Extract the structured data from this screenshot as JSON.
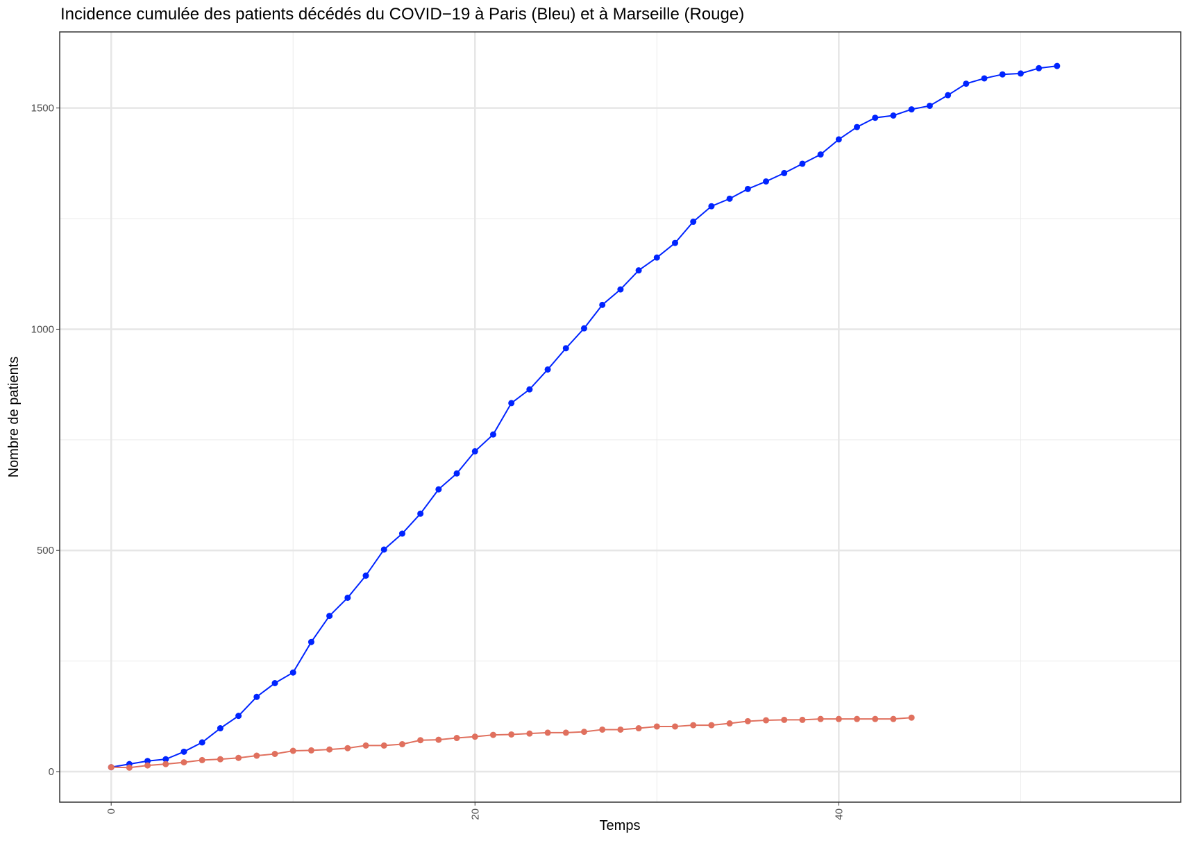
{
  "chart_data": {
    "type": "line",
    "title": "Incidence cumulée des patients décédés du COVID−19 à Paris (Bleu) et à Marseille (Rouge)",
    "x_label": "Temps",
    "y_label": "Nombre de patients",
    "grid": true,
    "xlim": [
      -2.83,
      58.8
    ],
    "ylim": [
      -69,
      1672
    ],
    "xticks": [
      0,
      20,
      40
    ],
    "yticks": [
      0,
      500,
      1000,
      1500
    ],
    "series": [
      {
        "color": "#0024ff",
        "x": [
          0,
          1,
          2,
          3,
          4,
          5,
          6,
          7,
          8,
          9,
          10,
          11,
          12,
          13,
          14,
          15,
          16,
          17,
          18,
          19,
          20,
          21,
          22,
          23,
          24,
          25,
          26,
          27,
          28,
          29,
          30,
          31,
          32,
          33,
          34,
          35,
          36,
          37,
          38,
          39,
          40,
          41,
          42,
          43,
          44,
          45,
          46,
          47,
          48,
          49,
          50,
          51,
          52
        ],
        "values": [
          10,
          17,
          24,
          28,
          45,
          66,
          98,
          126,
          169,
          200,
          224,
          293,
          352,
          393,
          443,
          502,
          538,
          583,
          638,
          674,
          724,
          762,
          833,
          864,
          909,
          957,
          1002,
          1055,
          1090,
          1133,
          1162,
          1195,
          1243,
          1278,
          1295,
          1317,
          1334,
          1353,
          1374,
          1395,
          1429,
          1457,
          1478,
          1483,
          1497,
          1505,
          1529,
          1555,
          1567,
          1576,
          1578,
          1590,
          1595
        ]
      },
      {
        "color": "#e0705e",
        "x": [
          0,
          1,
          2,
          3,
          4,
          5,
          6,
          7,
          8,
          9,
          10,
          11,
          12,
          13,
          14,
          15,
          16,
          17,
          18,
          19,
          20,
          21,
          22,
          23,
          24,
          25,
          26,
          27,
          28,
          29,
          30,
          31,
          32,
          33,
          34,
          35,
          36,
          37,
          38,
          39,
          40,
          41,
          42,
          43,
          44
        ],
        "values": [
          10,
          9,
          14,
          17,
          21,
          26,
          28,
          31,
          36,
          40,
          47,
          48,
          50,
          53,
          59,
          59,
          62,
          71,
          72,
          76,
          79,
          83,
          84,
          86,
          88,
          88,
          90,
          95,
          95,
          98,
          102,
          102,
          105,
          105,
          109,
          114,
          116,
          117,
          117,
          119,
          119,
          119,
          119,
          119,
          122
        ]
      }
    ]
  }
}
